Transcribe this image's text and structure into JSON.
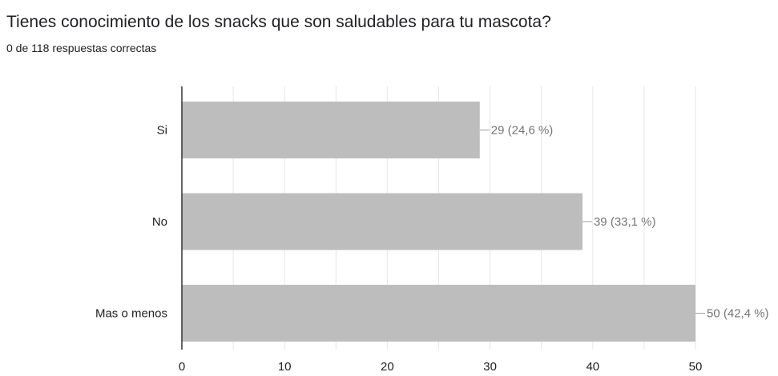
{
  "question": {
    "title": "Tienes conocimiento de los snacks que son saludables para tu mascota?",
    "score_text": "0 de 118 respuestas correctas"
  },
  "chart_data": {
    "type": "bar",
    "orientation": "horizontal",
    "categories": [
      "Si",
      "No",
      "Mas o menos"
    ],
    "values": [
      29,
      39,
      50
    ],
    "data_labels": [
      "29 (24,6 %)",
      "39 (33,1 %)",
      "50 (42,4 %)"
    ],
    "xlim": [
      0,
      50
    ],
    "xticks": [
      0,
      10,
      20,
      30,
      40,
      50
    ],
    "grid": true,
    "bar_color": "#bdbdbd",
    "grid_color": "#e6e6e6",
    "axis_color": "#333333",
    "label_color": "#757575"
  }
}
